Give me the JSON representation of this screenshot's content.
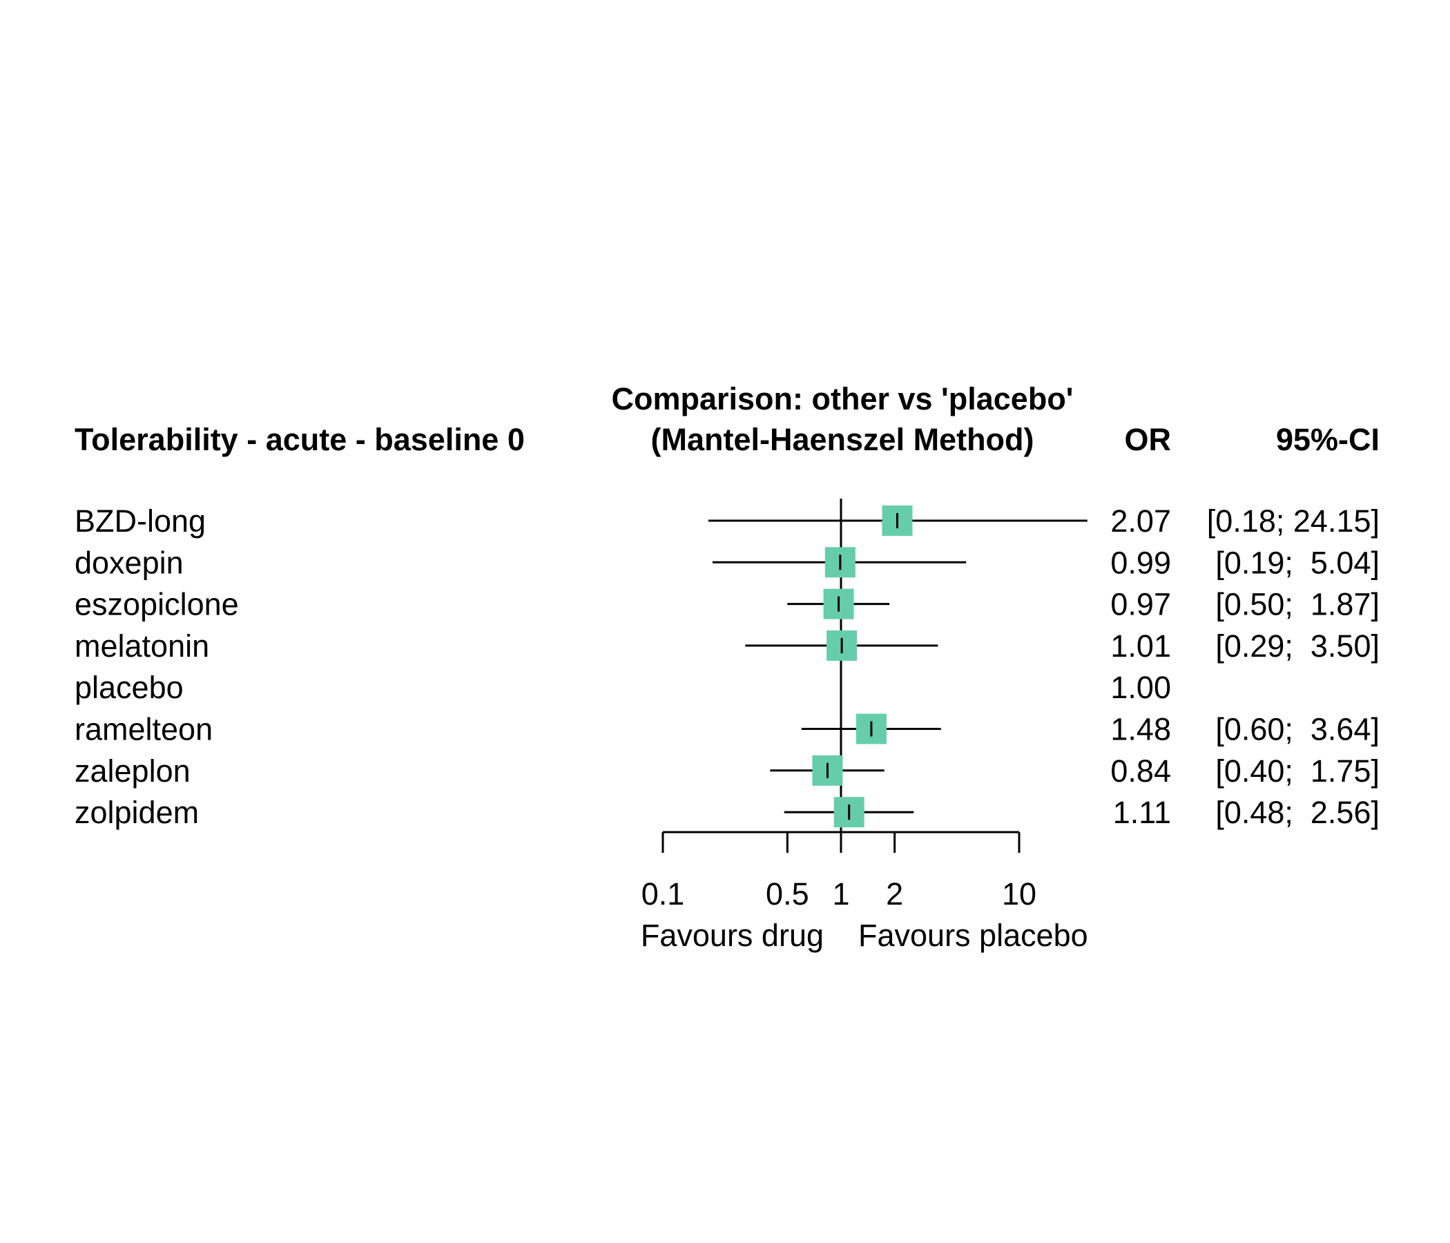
{
  "chart_data": {
    "type": "forest",
    "header": {
      "left_title": "Tolerability - acute - baseline 0",
      "center_title_line1": "Comparison: other vs 'placebo'",
      "center_title_line2": "(Mantel-Haenszel Method)",
      "or_col": "OR",
      "ci_col": "95%-CI"
    },
    "studies": [
      {
        "name": "BZD-long",
        "or": 2.07,
        "lower": 0.18,
        "upper": 24.15,
        "or_text": "2.07",
        "ci_text": "[0.18; 24.15]"
      },
      {
        "name": "doxepin",
        "or": 0.99,
        "lower": 0.19,
        "upper": 5.04,
        "or_text": "0.99",
        "ci_text": "[0.19;  5.04]"
      },
      {
        "name": "eszopiclone",
        "or": 0.97,
        "lower": 0.5,
        "upper": 1.87,
        "or_text": "0.97",
        "ci_text": "[0.50;  1.87]"
      },
      {
        "name": "melatonin",
        "or": 1.01,
        "lower": 0.29,
        "upper": 3.5,
        "or_text": "1.01",
        "ci_text": "[0.29;  3.50]"
      },
      {
        "name": "placebo",
        "or": 1.0,
        "lower": null,
        "upper": null,
        "or_text": "1.00",
        "ci_text": ""
      },
      {
        "name": "ramelteon",
        "or": 1.48,
        "lower": 0.6,
        "upper": 3.64,
        "or_text": "1.48",
        "ci_text": "[0.60;  3.64]"
      },
      {
        "name": "zaleplon",
        "or": 0.84,
        "lower": 0.4,
        "upper": 1.75,
        "or_text": "0.84",
        "ci_text": "[0.40;  1.75]"
      },
      {
        "name": "zolpidem",
        "or": 1.11,
        "lower": 0.48,
        "upper": 2.56,
        "or_text": "1.11",
        "ci_text": "[0.48;  2.56]"
      }
    ],
    "x_axis": {
      "scale": "log",
      "ticks": [
        0.1,
        0.5,
        1,
        2,
        10
      ],
      "tick_labels": [
        "0.1",
        "0.5",
        "1",
        "2",
        "10"
      ],
      "reference_line": 1,
      "left_label": "Favours drug",
      "right_label": "Favours placebo"
    },
    "colors": {
      "box": "#66CDAA",
      "lines": "#000000"
    }
  }
}
